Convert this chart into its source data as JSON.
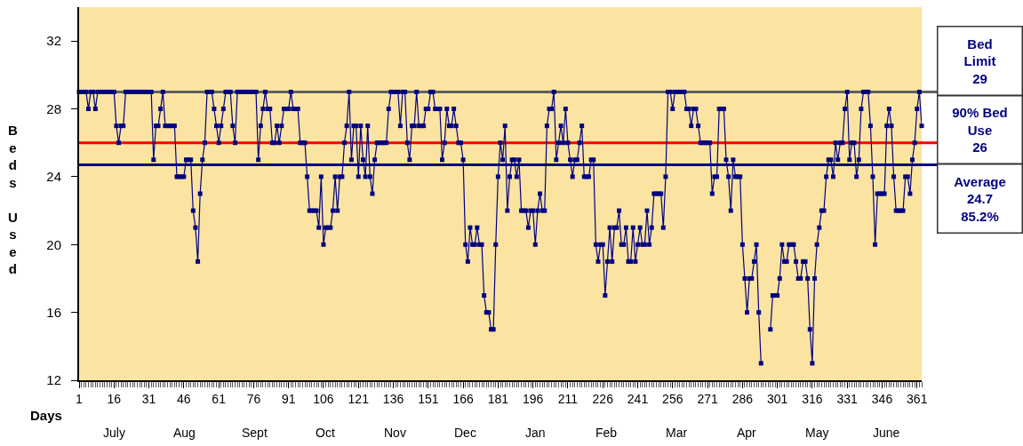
{
  "chart_data": {
    "type": "line",
    "xlabel": "Days",
    "ylabel": "Beds Used",
    "x": [
      1,
      2,
      3,
      4,
      5,
      6,
      7,
      8,
      9,
      10,
      11,
      12,
      13,
      14,
      15,
      16,
      17,
      18,
      19,
      20,
      21,
      22,
      23,
      24,
      25,
      26,
      27,
      28,
      29,
      30,
      31,
      32,
      33,
      34,
      35,
      36,
      37,
      38,
      39,
      40,
      41,
      42,
      43,
      44,
      45,
      46,
      47,
      48,
      49,
      50,
      51,
      52,
      53,
      54,
      55,
      56,
      57,
      58,
      59,
      60,
      61,
      62,
      63,
      64,
      65,
      66,
      67,
      68,
      69,
      70,
      71,
      72,
      73,
      74,
      75,
      76,
      77,
      78,
      79,
      80,
      81,
      82,
      83,
      84,
      85,
      86,
      87,
      88,
      89,
      90,
      91,
      92,
      93,
      94,
      95,
      96,
      97,
      98,
      99,
      100,
      101,
      102,
      103,
      104,
      105,
      106,
      107,
      108,
      109,
      110,
      111,
      112,
      113,
      114,
      115,
      116,
      117,
      118,
      119,
      120,
      121,
      122,
      123,
      124,
      125,
      126,
      127,
      128,
      129,
      130,
      131,
      132,
      133,
      134,
      135,
      136,
      137,
      138,
      139,
      140,
      141,
      142,
      143,
      144,
      145,
      146,
      147,
      148,
      149,
      150,
      151,
      152,
      153,
      154,
      155,
      156,
      157,
      158,
      159,
      160,
      161,
      162,
      163,
      164,
      165,
      166,
      167,
      168,
      169,
      170,
      171,
      172,
      173,
      174,
      175,
      176,
      177,
      178,
      179,
      180,
      181,
      182,
      183,
      184,
      185,
      186,
      187,
      188,
      189,
      190,
      191,
      192,
      193,
      194,
      195,
      196,
      197,
      198,
      199,
      200,
      201,
      202,
      203,
      204,
      205,
      206,
      207,
      208,
      209,
      210,
      211,
      212,
      213,
      214,
      215,
      216,
      217,
      218,
      219,
      220,
      221,
      222,
      223,
      224,
      225,
      226,
      227,
      228,
      229,
      230,
      231,
      232,
      233,
      234,
      235,
      236,
      237,
      238,
      239,
      240,
      241,
      242,
      243,
      244,
      245,
      246,
      247,
      248,
      249,
      250,
      251,
      252,
      253,
      254,
      255,
      256,
      257,
      258,
      259,
      260,
      261,
      262,
      263,
      264,
      265,
      266,
      267,
      268,
      269,
      270,
      271,
      272,
      273,
      274,
      275,
      276,
      277,
      278,
      279,
      280,
      281,
      282,
      283,
      284,
      285,
      286,
      287,
      288,
      289,
      290,
      291,
      292,
      293,
      294,
      295,
      296,
      297,
      298,
      299,
      300,
      301,
      302,
      303,
      304,
      305,
      306,
      307,
      308,
      309,
      310,
      311,
      312,
      313,
      314,
      315,
      316,
      317,
      318,
      319,
      320,
      321,
      322,
      323,
      324,
      325,
      326,
      327,
      328,
      329,
      330,
      331,
      332,
      333,
      334,
      335,
      336,
      337,
      338,
      339,
      340,
      341,
      342,
      343,
      344,
      345,
      346,
      347,
      348,
      349,
      350,
      351,
      352,
      353,
      354,
      355,
      356,
      357,
      358,
      359,
      360,
      361,
      362,
      363
    ],
    "series": [
      {
        "color": "#000080",
        "values": [
          29,
          29,
          29,
          29,
          28,
          29,
          29,
          28,
          29,
          29,
          29,
          29,
          29,
          29,
          29,
          29,
          27,
          26,
          27,
          27,
          29,
          29,
          29,
          29,
          29,
          29,
          29,
          29,
          29,
          29,
          29,
          29,
          25,
          27,
          27,
          28,
          29,
          27,
          27,
          27,
          27,
          27,
          24,
          24,
          24,
          24,
          25,
          25,
          25,
          22,
          21,
          19,
          23,
          25,
          26,
          29,
          29,
          29,
          28,
          27,
          26,
          27,
          28,
          29,
          29,
          29,
          27,
          26,
          29,
          29,
          29,
          29,
          29,
          29,
          29,
          29,
          29,
          25,
          27,
          28,
          29,
          28,
          28,
          26,
          26,
          27,
          26,
          27,
          28,
          28,
          28,
          29,
          28,
          28,
          28,
          26,
          26,
          26,
          24,
          22,
          22,
          22,
          22,
          21,
          24,
          20,
          21,
          21,
          21,
          22,
          24,
          22,
          24,
          24,
          26,
          27,
          29,
          25,
          27,
          27,
          24,
          27,
          25,
          24,
          27,
          24,
          23,
          25,
          26,
          26,
          26,
          26,
          26,
          28,
          29,
          29,
          29,
          29,
          27,
          29,
          29,
          26,
          25,
          27,
          27,
          29,
          27,
          27,
          27,
          28,
          28,
          29,
          29,
          28,
          28,
          28,
          25,
          26,
          28,
          27,
          27,
          28,
          27,
          26,
          26,
          25,
          20,
          19,
          21,
          20,
          20,
          21,
          20,
          20,
          17,
          16,
          16,
          15,
          15,
          20,
          24,
          26,
          25,
          27,
          22,
          24,
          25,
          25,
          24,
          25,
          22,
          22,
          22,
          21,
          22,
          22,
          20,
          22,
          23,
          22,
          22,
          27,
          28,
          28,
          29,
          25,
          26,
          27,
          26,
          28,
          26,
          25,
          24,
          25,
          25,
          26,
          27,
          24,
          24,
          24,
          25,
          25,
          20,
          19,
          20,
          20,
          17,
          19,
          21,
          19,
          21,
          21,
          22,
          20,
          20,
          21,
          19,
          19,
          21,
          19,
          20,
          21,
          20,
          20,
          22,
          20,
          21,
          23,
          23,
          23,
          23,
          21,
          24,
          29,
          29,
          28,
          29,
          29,
          29,
          29,
          29,
          28,
          28,
          27,
          28,
          28,
          27,
          26,
          26,
          26,
          26,
          26,
          23,
          24,
          24,
          28,
          28,
          28,
          25,
          24,
          22,
          25,
          24,
          24,
          24,
          20,
          18,
          16,
          18,
          18,
          19,
          20,
          16,
          13,
          null,
          null,
          null,
          15,
          17,
          17,
          17,
          18,
          20,
          19,
          19,
          20,
          20,
          20,
          19,
          18,
          18,
          19,
          19,
          18,
          15,
          13,
          18,
          20,
          21,
          22,
          22,
          24,
          25,
          25,
          24,
          26,
          25,
          26,
          26,
          28,
          29,
          25,
          26,
          26,
          24,
          25,
          28,
          29,
          29,
          29,
          27,
          24,
          20,
          23,
          23,
          23,
          23,
          27,
          28,
          27,
          24,
          22,
          22,
          22,
          22,
          24,
          24,
          23,
          25,
          26,
          28,
          29,
          27
        ]
      }
    ],
    "marker": "square",
    "line_style": "solid",
    "grid": false,
    "xlim": [
      1,
      363
    ],
    "ylim": [
      12,
      34
    ],
    "xticks": [
      1,
      16,
      31,
      46,
      61,
      76,
      91,
      106,
      121,
      136,
      151,
      166,
      181,
      196,
      211,
      226,
      241,
      256,
      271,
      286,
      301,
      316,
      331,
      346,
      361
    ],
    "yticks": [
      12,
      16,
      20,
      24,
      28,
      32
    ],
    "annotations": [
      "July",
      "Aug",
      "Sept",
      "Oct",
      "Nov",
      "Dec",
      "Jan",
      "Feb",
      "Mar",
      "Apr",
      "May",
      "June"
    ],
    "ref_lines": [
      {
        "axis": "y",
        "value": 29,
        "label": "Bed\nLimit\n29",
        "color": "#606060"
      },
      {
        "axis": "y",
        "value": 26,
        "label": "90% Bed\nUse\n26",
        "color": "#ff0000"
      },
      {
        "axis": "y",
        "value": 24.7,
        "label": "Average\n24.7\n85.2%",
        "color": "#000080"
      }
    ]
  }
}
